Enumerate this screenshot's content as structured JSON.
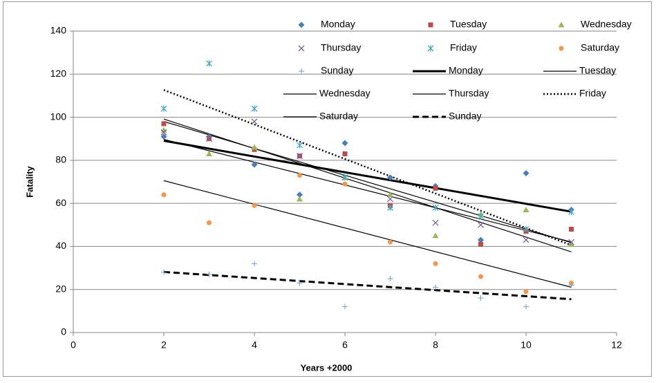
{
  "chart_data": {
    "type": "scatter",
    "xlabel": "Years +2000",
    "ylabel": "Fatality",
    "x": [
      2,
      3,
      4,
      5,
      6,
      7,
      8,
      9,
      10,
      11
    ],
    "series": [
      {
        "name": "Monday",
        "color": "#4a7ebb",
        "marker": "diamond",
        "values": [
          91,
          91,
          78,
          64,
          88,
          72,
          68,
          43,
          74,
          57
        ]
      },
      {
        "name": "Tuesday",
        "color": "#be4b48",
        "marker": "square",
        "values": [
          97,
          90,
          85,
          82,
          83,
          59,
          67,
          41,
          47,
          48
        ]
      },
      {
        "name": "Wednesday",
        "color": "#98b954",
        "marker": "triangle",
        "values": [
          94,
          83,
          86,
          62,
          72,
          64,
          45,
          55,
          57,
          41
        ]
      },
      {
        "name": "Thursday",
        "color": "#7d60a0",
        "marker": "x",
        "values": [
          93,
          90,
          98,
          82,
          72,
          62,
          51,
          50,
          43,
          42
        ]
      },
      {
        "name": "Friday",
        "color": "#46aac5",
        "marker": "asterisk",
        "values": [
          104,
          125,
          104,
          87,
          72,
          58,
          58,
          54,
          48,
          56
        ]
      },
      {
        "name": "Saturday",
        "color": "#f79646",
        "marker": "circle",
        "values": [
          64,
          51,
          59,
          73,
          69,
          42,
          32,
          26,
          19,
          23
        ]
      },
      {
        "name": "Sunday",
        "color": "#6f9fd8",
        "marker": "plus",
        "values": [
          28,
          27,
          32,
          23,
          12,
          25,
          21,
          16,
          12,
          22
        ]
      }
    ],
    "trendlines": [
      {
        "name": "Monday",
        "color": "#000000",
        "width": 3,
        "dash": "solid"
      },
      {
        "name": "Tuesday",
        "color": "#000000",
        "width": 1.2,
        "dash": "solid"
      },
      {
        "name": "Wednesday",
        "color": "#000000",
        "width": 1.2,
        "dash": "solid"
      },
      {
        "name": "Thursday",
        "color": "#000000",
        "width": 1.2,
        "dash": "solid"
      },
      {
        "name": "Friday",
        "color": "#000000",
        "width": 2.5,
        "dash": "dotted"
      },
      {
        "name": "Saturday",
        "color": "#000000",
        "width": 1.2,
        "dash": "solid"
      },
      {
        "name": "Sunday",
        "color": "#000000",
        "width": 3,
        "dash": "dashed"
      }
    ],
    "xlim": [
      0,
      12
    ],
    "xticks": [
      0,
      2,
      4,
      6,
      8,
      10,
      12
    ],
    "ylim": [
      0,
      140
    ],
    "yticks": [
      0,
      20,
      40,
      60,
      80,
      100,
      120,
      140
    ],
    "grid": true
  }
}
